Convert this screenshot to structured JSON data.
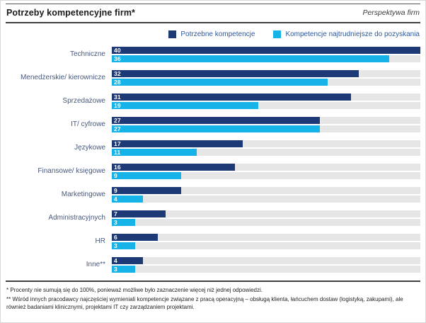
{
  "header": {
    "title": "Potrzeby kompetencyjne firm*",
    "subtitle": "Perspektywa firm"
  },
  "legend": [
    {
      "label": "Potrzebne kompetencje",
      "color": "#1e3a76"
    },
    {
      "label": "Kompetencje najtrudniejsze do pozyskania",
      "color": "#16b3e8"
    }
  ],
  "chart_data": {
    "type": "bar",
    "orientation": "horizontal",
    "title": "Potrzeby kompetencyjne firm*",
    "categories": [
      "Techniczne",
      "Menedżerskie/ kierownicze",
      "Sprzedażowe",
      "IT/ cyfrowe",
      "Językowe",
      "Finansowe/ księgowe",
      "Marketingowe",
      "Administracyjnych",
      "HR",
      "Inne**"
    ],
    "series": [
      {
        "name": "Potrzebne kompetencje",
        "color": "#1e3a76",
        "values": [
          40,
          32,
          31,
          27,
          17,
          16,
          9,
          7,
          6,
          4
        ]
      },
      {
        "name": "Kompetencje najtrudniejsze do pozyskania",
        "color": "#16b3e8",
        "values": [
          36,
          28,
          19,
          27,
          11,
          9,
          4,
          3,
          3,
          3
        ]
      }
    ],
    "xlim": [
      0,
      40
    ],
    "track_color": "#e6e6e6",
    "value_labels": "inside-start",
    "legend_position": "top-right",
    "grid": false
  },
  "footnotes": [
    "* Procenty nie sumują się do 100%, ponieważ możliwe było zaznaczenie więcej niż jednej odpowiedzi.",
    "** Wśród innych pracodawcy najczęściej wymieniali kompetencje związane z pracą operacyjną – obsługą klienta, łańcuchem dostaw (logistyką, zakupami), ale również badaniami klinicznymi, projektami IT czy zarządzaniem projektami."
  ]
}
